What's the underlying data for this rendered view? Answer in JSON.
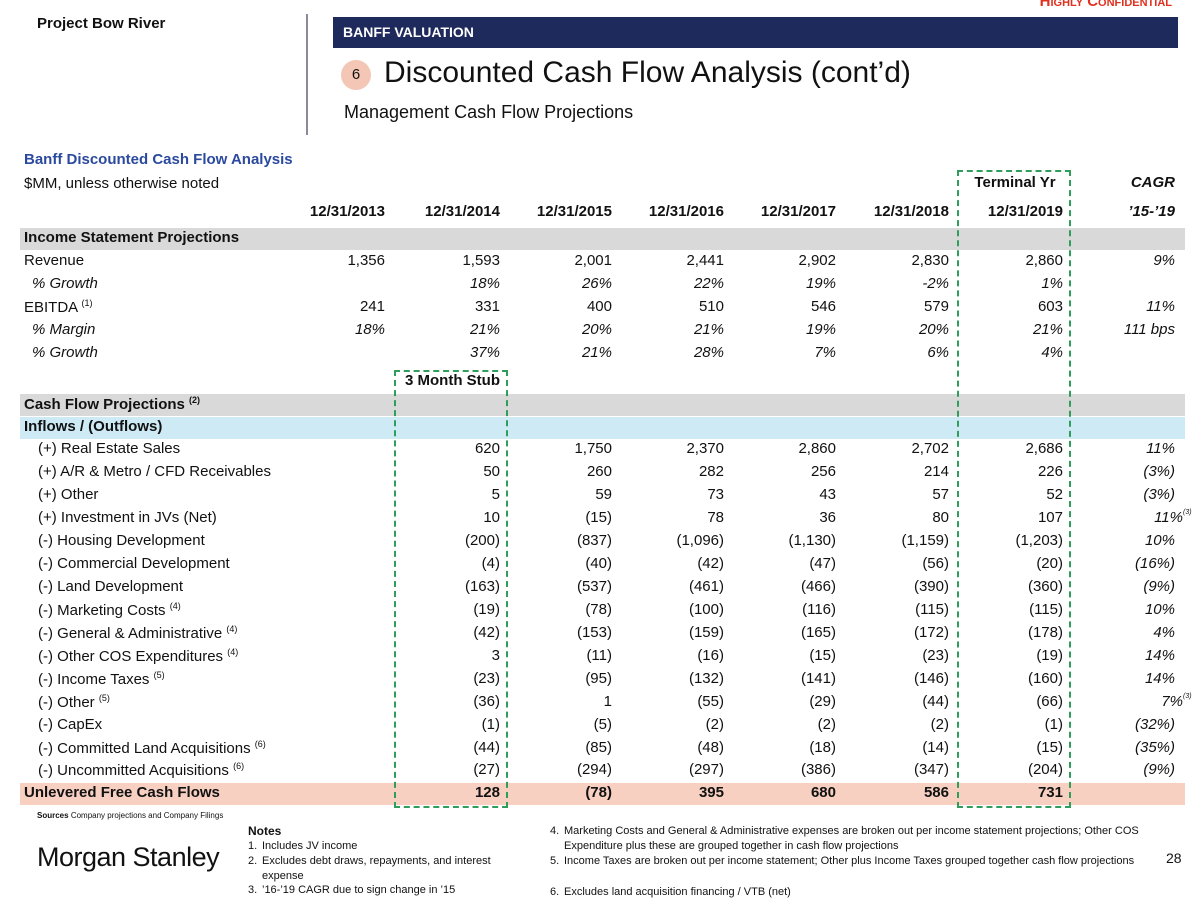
{
  "header": {
    "project": "Project Bow River",
    "confidential": "Highly Confidential",
    "banner": "BANFF VALUATION",
    "section_number": "6",
    "title": "Discounted Cash Flow Analysis (cont’d)",
    "subtitle": "Management Cash Flow Projections"
  },
  "table": {
    "title": "Banff Discounted Cash Flow Analysis",
    "units": "$MM, unless otherwise noted",
    "terminal_label": "Terminal Yr",
    "cagr_label": "CAGR",
    "stub_label": "3 Month Stub",
    "columns": [
      "12/31/2013",
      "12/31/2014",
      "12/31/2015",
      "12/31/2016",
      "12/31/2017",
      "12/31/2018",
      "12/31/2019"
    ],
    "cagr_period": "’15-’19",
    "rows": [
      {
        "style": "section",
        "label": "Income Statement Projections"
      },
      {
        "style": "line",
        "label": "Revenue",
        "values": [
          "1,356",
          "1,593",
          "2,001",
          "2,441",
          "2,902",
          "2,830",
          "2,860"
        ],
        "cagr": "9%"
      },
      {
        "style": "italic",
        "label": "% Growth",
        "values": [
          null,
          "18%",
          "26%",
          "22%",
          "19%",
          "-2%",
          "1%"
        ]
      },
      {
        "style": "line",
        "label": "EBITDA",
        "note": "(1)",
        "values": [
          "241",
          "331",
          "400",
          "510",
          "546",
          "579",
          "603"
        ],
        "cagr": "11%"
      },
      {
        "style": "italic",
        "label": "% Margin",
        "values": [
          "18%",
          "21%",
          "20%",
          "21%",
          "19%",
          "20%",
          "21%"
        ],
        "cagr": "111 bps"
      },
      {
        "style": "italic",
        "label": "% Growth",
        "values": [
          null,
          "37%",
          "21%",
          "28%",
          "7%",
          "6%",
          "4%"
        ]
      },
      {
        "style": "section",
        "label": "Cash Flow Projections",
        "note": "(2)"
      },
      {
        "style": "subsection",
        "label": "Inflows / (Outflows)"
      },
      {
        "style": "item",
        "label": "(+) Real Estate Sales",
        "values": [
          null,
          "620",
          "1,750",
          "2,370",
          "2,860",
          "2,702",
          "2,686"
        ],
        "cagr": "11%"
      },
      {
        "style": "item",
        "label": "(+) A/R & Metro / CFD Receivables",
        "values": [
          null,
          "50",
          "260",
          "282",
          "256",
          "214",
          "226"
        ],
        "cagr": "(3%)"
      },
      {
        "style": "item",
        "label": "(+) Other",
        "values": [
          null,
          "5",
          "59",
          "73",
          "43",
          "57",
          "52"
        ],
        "cagr": "(3%)"
      },
      {
        "style": "item",
        "label": "(+) Investment in JVs (Net)",
        "values": [
          null,
          "10",
          "(15)",
          "78",
          "36",
          "80",
          "107"
        ],
        "cagr": "11%",
        "cagr_note": "(3)"
      },
      {
        "style": "item",
        "label": "(-) Housing Development",
        "values": [
          null,
          "(200)",
          "(837)",
          "(1,096)",
          "(1,130)",
          "(1,159)",
          "(1,203)"
        ],
        "cagr": "10%"
      },
      {
        "style": "item",
        "label": "(-) Commercial Development",
        "values": [
          null,
          "(4)",
          "(40)",
          "(42)",
          "(47)",
          "(56)",
          "(20)"
        ],
        "cagr": "(16%)"
      },
      {
        "style": "item",
        "label": "(-) Land Development",
        "values": [
          null,
          "(163)",
          "(537)",
          "(461)",
          "(466)",
          "(390)",
          "(360)"
        ],
        "cagr": "(9%)"
      },
      {
        "style": "item",
        "label": "(-) Marketing Costs",
        "note": "(4)",
        "values": [
          null,
          "(19)",
          "(78)",
          "(100)",
          "(116)",
          "(115)",
          "(115)"
        ],
        "cagr": "10%"
      },
      {
        "style": "item",
        "label": "(-) General & Administrative",
        "note": "(4)",
        "values": [
          null,
          "(42)",
          "(153)",
          "(159)",
          "(165)",
          "(172)",
          "(178)"
        ],
        "cagr": "4%"
      },
      {
        "style": "item",
        "label": "(-) Other COS Expenditures",
        "note": "(4)",
        "values": [
          null,
          "3",
          "(11)",
          "(16)",
          "(15)",
          "(23)",
          "(19)"
        ],
        "cagr": "14%"
      },
      {
        "style": "item",
        "label": "(-) Income Taxes",
        "note": "(5)",
        "values": [
          null,
          "(23)",
          "(95)",
          "(132)",
          "(141)",
          "(146)",
          "(160)"
        ],
        "cagr": "14%"
      },
      {
        "style": "item",
        "label": "(-) Other",
        "note": "(5)",
        "values": [
          null,
          "(36)",
          "1",
          "(55)",
          "(29)",
          "(44)",
          "(66)"
        ],
        "cagr": "7%",
        "cagr_note": "(3)"
      },
      {
        "style": "item",
        "label": "(-) CapEx",
        "values": [
          null,
          "(1)",
          "(5)",
          "(2)",
          "(2)",
          "(2)",
          "(1)"
        ],
        "cagr": "(32%)"
      },
      {
        "style": "item",
        "label": "(-) Committed Land Acquisitions",
        "note": "(6)",
        "values": [
          null,
          "(44)",
          "(85)",
          "(48)",
          "(18)",
          "(14)",
          "(15)"
        ],
        "cagr": "(35%)"
      },
      {
        "style": "item",
        "label": "(-) Uncommitted Acquisitions",
        "note": "(6)",
        "values": [
          null,
          "(27)",
          "(294)",
          "(297)",
          "(386)",
          "(347)",
          "(204)"
        ],
        "cagr": "(9%)"
      },
      {
        "style": "total",
        "label": "Unlevered Free Cash Flows",
        "values": [
          null,
          "128",
          "(78)",
          "395",
          "680",
          "586",
          "731"
        ]
      }
    ]
  },
  "footer": {
    "sources_label": "Sources",
    "sources": "Company projections and Company Filings",
    "notes_label": "Notes",
    "logo": "Morgan Stanley",
    "page": "28",
    "notes": [
      {
        "num": "1.",
        "text": "Includes JV income"
      },
      {
        "num": "2.",
        "text": "Excludes debt draws, repayments, and interest expense"
      },
      {
        "num": "3.",
        "text": "’16-’19 CAGR due to sign change in ’15"
      },
      {
        "num": "4.",
        "text": "Marketing Costs and General & Administrative expenses are broken out per income statement projections; Other COS Expenditure plus these are grouped together in cash flow projections"
      },
      {
        "num": "5.",
        "text": "Income Taxes are broken out per income statement; Other plus Income Taxes grouped together cash flow projections"
      },
      {
        "num": "6.",
        "text": "Excludes land acquisition financing / VTB (net)"
      }
    ]
  }
}
